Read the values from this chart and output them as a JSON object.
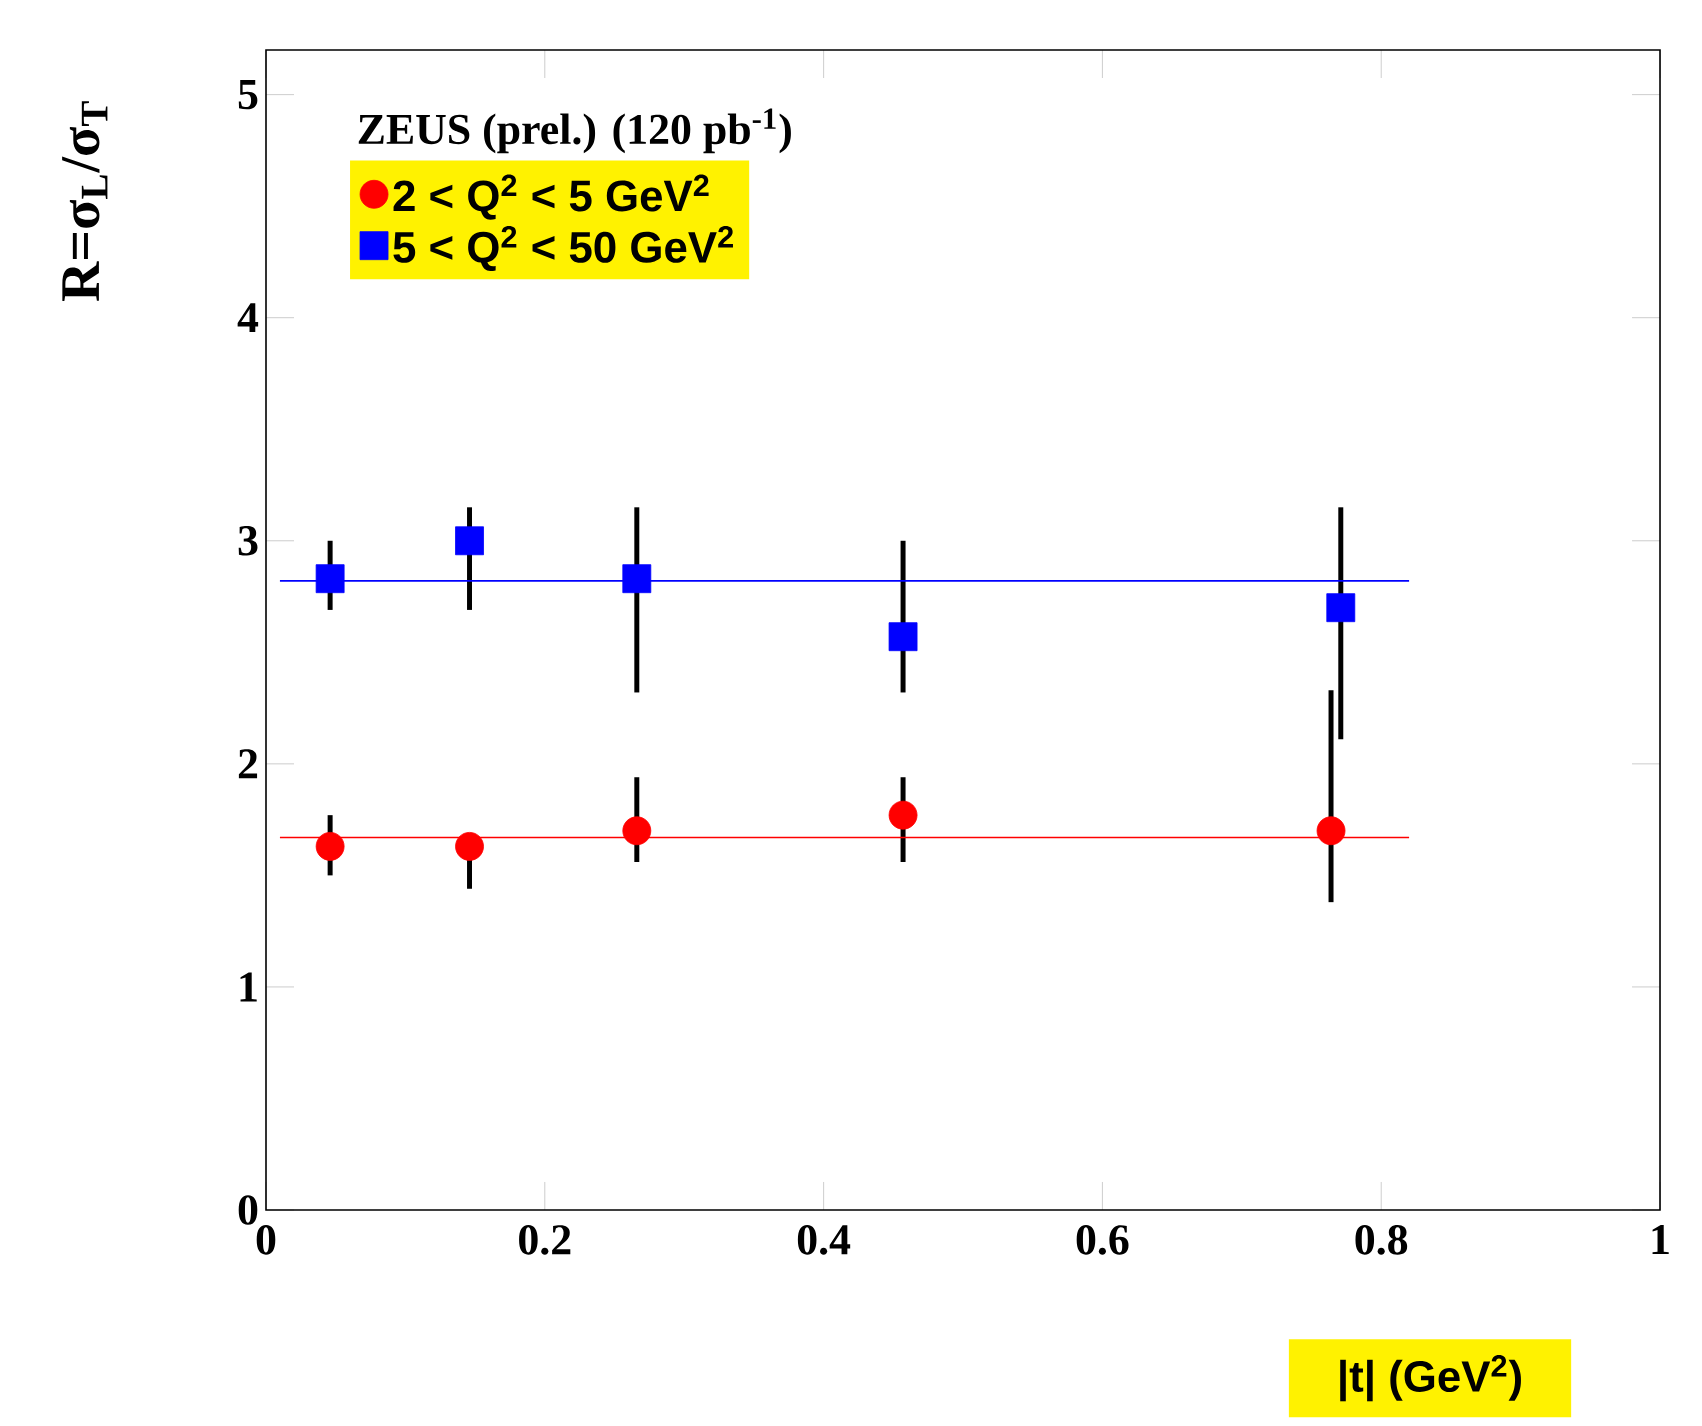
{
  "chart_data": {
    "type": "scatter",
    "legend_title": "ZEUS (prel.) (120 pb$^{-1}$)",
    "xlabel": "|t| (GeV$^{2}$)",
    "ylabel": "R=σ$_{L}$/σ$_{T}$",
    "xlim": [
      0,
      1
    ],
    "ylim": [
      0,
      5.2
    ],
    "xticks": [
      0,
      0.2,
      0.4,
      0.6,
      0.8,
      1
    ],
    "yticks": [
      0,
      1,
      2,
      3,
      4,
      5
    ],
    "legend": "top left",
    "series": [
      {
        "name": "2 < Q$^{2}$ < 5  GeV$^{2}$",
        "color": "#ff0000",
        "marker": "circle",
        "x": [
          0.046,
          0.146,
          0.266,
          0.457,
          0.764
        ],
        "values": [
          1.63,
          1.63,
          1.7,
          1.77,
          1.7
        ],
        "errors": [
          [
            1.5,
            1.77
          ],
          [
            1.44,
            1.68
          ],
          [
            1.56,
            1.94
          ],
          [
            1.56,
            1.94
          ],
          [
            1.38,
            2.33
          ]
        ]
      },
      {
        "name": "5 < Q$^{2}$ < 50 GeV$^{2}$",
        "color": "#0000ff",
        "marker": "square",
        "x": [
          0.046,
          0.146,
          0.266,
          0.457,
          0.771
        ],
        "values": [
          2.83,
          3.0,
          2.83,
          2.57,
          2.7
        ],
        "errors": [
          [
            2.69,
            3.0
          ],
          [
            2.69,
            3.15
          ],
          [
            2.32,
            3.15
          ],
          [
            2.32,
            3.0
          ],
          [
            2.11,
            3.15
          ]
        ]
      },
      {
        "type": "line",
        "color": "#ff0000",
        "line_style": "solid",
        "x": [
          0.01,
          0.82
        ],
        "values": [
          1.67,
          1.67
        ]
      },
      {
        "type": "line",
        "color": "#0000ff",
        "line_style": "solid",
        "x": [
          0.01,
          0.82
        ],
        "values": [
          2.82,
          2.82
        ]
      }
    ]
  }
}
